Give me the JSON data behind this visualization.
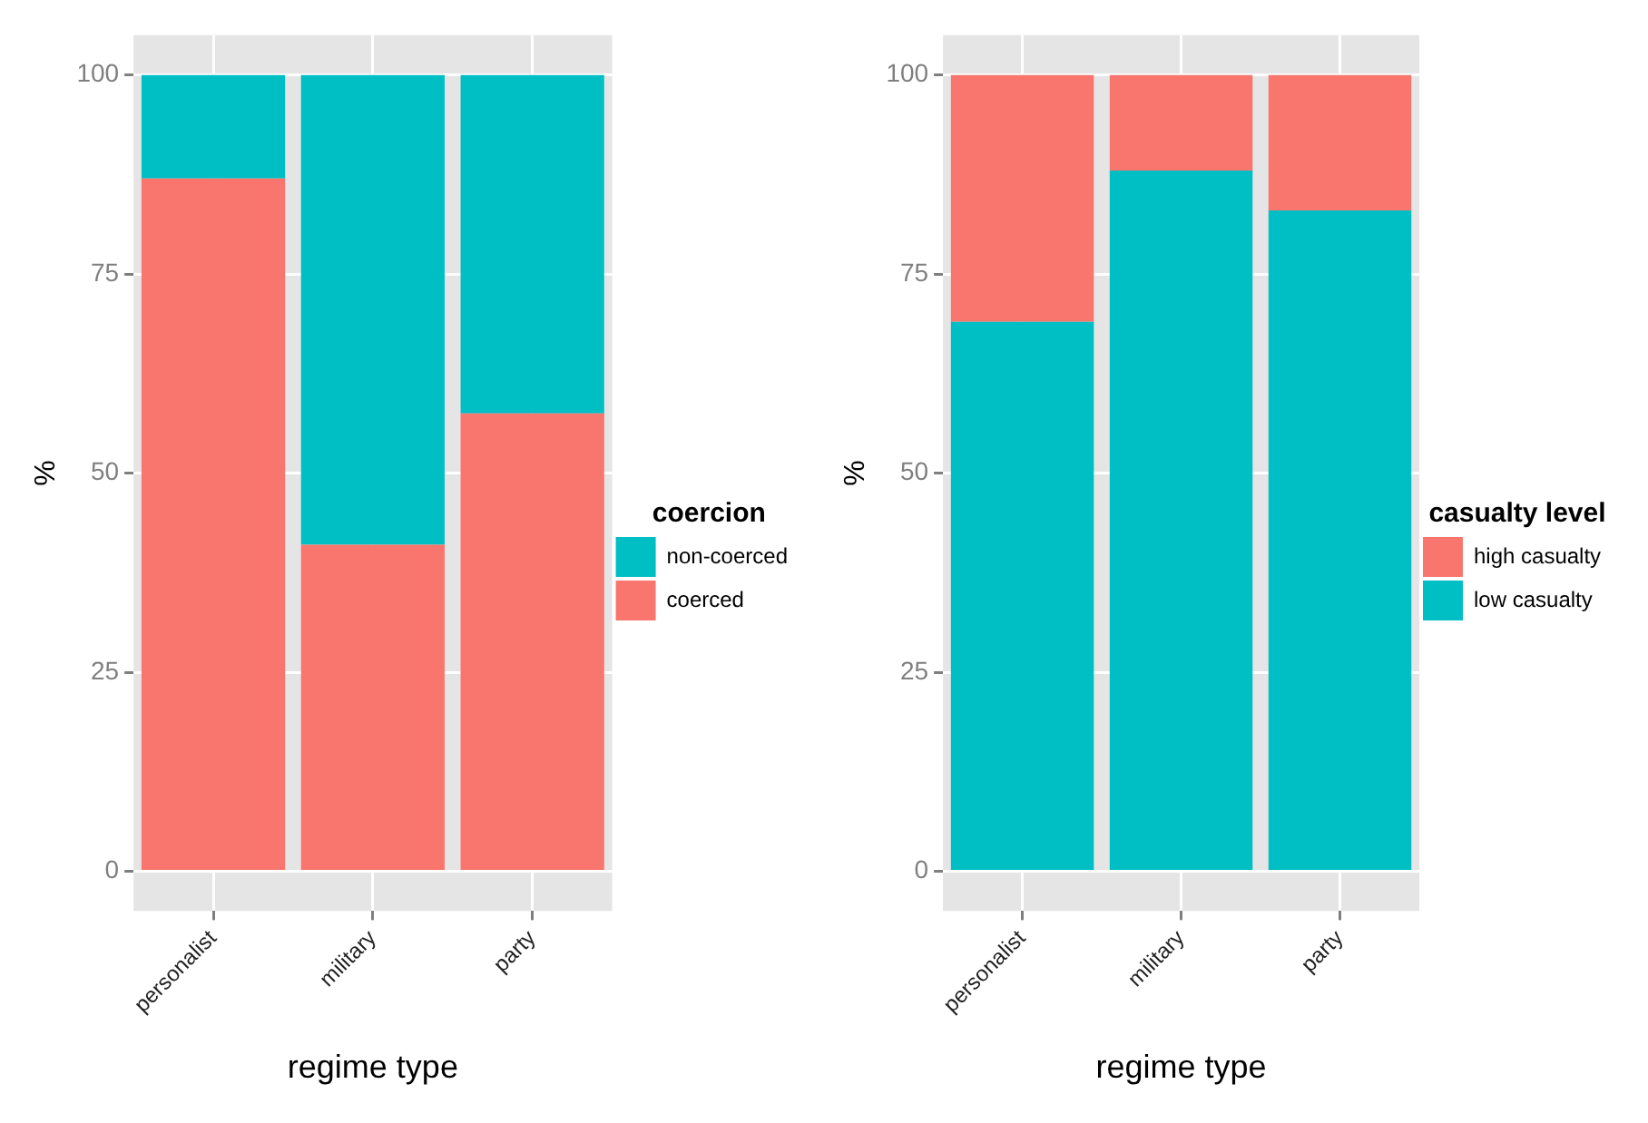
{
  "chart_data": [
    {
      "type": "bar",
      "stacked": true,
      "xlabel": "regime type",
      "ylabel": "%",
      "legend_title": "coercion",
      "legend": "right",
      "grid": true,
      "categories": [
        "personalist",
        "military",
        "party"
      ],
      "ylim": [
        -5,
        105
      ],
      "yticks": [
        0,
        25,
        50,
        75,
        100
      ],
      "series": [
        {
          "name": "coerced",
          "color": "#f8766d",
          "values": [
            87,
            41,
            57.5
          ]
        },
        {
          "name": "non-coerced",
          "color": "#00bfc4",
          "values": [
            13,
            59,
            42.5
          ]
        }
      ]
    },
    {
      "type": "bar",
      "stacked": true,
      "xlabel": "regime type",
      "ylabel": "%",
      "legend_title": "casualty level",
      "legend": "right",
      "grid": true,
      "categories": [
        "personalist",
        "military",
        "party"
      ],
      "ylim": [
        -5,
        105
      ],
      "yticks": [
        0,
        25,
        50,
        75,
        100
      ],
      "series": [
        {
          "name": "low casualty",
          "color": "#00bfc4",
          "values": [
            69,
            88,
            83
          ]
        },
        {
          "name": "high casualty",
          "color": "#f8766d",
          "values": [
            31,
            12,
            17
          ]
        }
      ]
    }
  ]
}
